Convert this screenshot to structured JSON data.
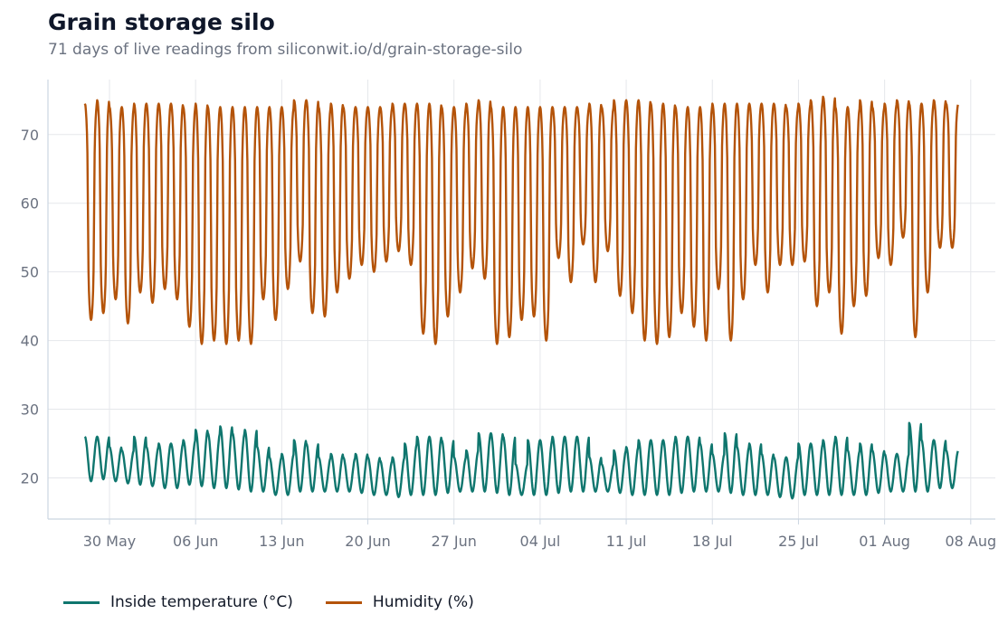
{
  "title": "Grain storage silo",
  "subtitle": "71 days of live readings from siliconwit.io/d/grain-storage-silo",
  "chart_data": {
    "type": "line",
    "title": "Grain storage silo",
    "subtitle": "71 days of live readings from siliconwit.io/d/grain-storage-silo",
    "xlabel": "",
    "ylabel": "",
    "x_start": "2025-05-28",
    "x_end": "2025-08-07",
    "xlim": [
      "2025-05-25",
      "2025-08-10"
    ],
    "ylim": [
      14,
      78
    ],
    "y_ticks": [
      20,
      30,
      40,
      50,
      60,
      70
    ],
    "x_ticks": [
      {
        "date": "2025-05-30",
        "label": "30 May"
      },
      {
        "date": "2025-06-06",
        "label": "06 Jun"
      },
      {
        "date": "2025-06-13",
        "label": "13 Jun"
      },
      {
        "date": "2025-06-20",
        "label": "20 Jun"
      },
      {
        "date": "2025-06-27",
        "label": "27 Jun"
      },
      {
        "date": "2025-07-04",
        "label": "04 Jul"
      },
      {
        "date": "2025-07-11",
        "label": "11 Jul"
      },
      {
        "date": "2025-07-18",
        "label": "18 Jul"
      },
      {
        "date": "2025-07-25",
        "label": "25 Jul"
      },
      {
        "date": "2025-08-01",
        "label": "01 Aug"
      },
      {
        "date": "2025-08-08",
        "label": "08 Aug"
      }
    ],
    "grid": true,
    "legend_position": "bottom-left",
    "series": [
      {
        "name": "Inside temperature (°C)",
        "color": "#0f766e",
        "daily_min": [
          19.5,
          19.8,
          19.5,
          19.2,
          19.0,
          18.8,
          18.5,
          18.5,
          19.0,
          18.8,
          18.5,
          18.5,
          18.3,
          18.0,
          18.0,
          17.5,
          17.5,
          18.0,
          18.0,
          18.0,
          18.0,
          18.0,
          17.8,
          17.5,
          17.5,
          17.2,
          17.5,
          17.5,
          17.5,
          17.8,
          18.0,
          18.0,
          18.0,
          17.8,
          17.5,
          17.5,
          17.5,
          17.5,
          17.8,
          18.0,
          18.0,
          18.0,
          18.0,
          17.8,
          17.5,
          17.5,
          17.5,
          17.5,
          17.8,
          18.0,
          18.0,
          18.0,
          17.8,
          17.5,
          17.5,
          17.5,
          17.2,
          17.0,
          17.5,
          17.5,
          17.5,
          17.5,
          17.5,
          17.5,
          17.8,
          18.0,
          18.0,
          18.0,
          18.0,
          18.5,
          18.5
        ],
        "daily_max": [
          26.0,
          26.0,
          24.5,
          24.0,
          26.0,
          24.5,
          25.0,
          25.0,
          25.5,
          27.0,
          26.5,
          27.5,
          26.5,
          27.0,
          24.5,
          23.0,
          23.5,
          25.5,
          25.0,
          23.0,
          23.5,
          23.0,
          23.5,
          23.0,
          22.5,
          23.0,
          25.0,
          26.0,
          26.0,
          25.5,
          23.0,
          24.0,
          26.5,
          26.5,
          26.0,
          22.0,
          25.5,
          25.5,
          26.0,
          26.0,
          26.0,
          23.0,
          22.0,
          24.0,
          24.5,
          25.5,
          25.5,
          25.5,
          26.0,
          26.0,
          25.0,
          23.5,
          26.5,
          24.5,
          25.0,
          23.5,
          23.0,
          23.0,
          25.0,
          25.0,
          25.5,
          26.0,
          24.0,
          25.0,
          24.0,
          23.5,
          23.5,
          28.0,
          25.5,
          25.5,
          24.0
        ]
      },
      {
        "name": "Humidity (%)",
        "color": "#b45309",
        "daily_min": [
          43.0,
          44.0,
          46.0,
          42.5,
          47.0,
          45.5,
          47.5,
          46.0,
          42.0,
          39.5,
          40.0,
          39.5,
          40.0,
          39.5,
          46.0,
          43.0,
          47.5,
          51.5,
          44.0,
          43.5,
          47.0,
          49.0,
          51.0,
          50.0,
          51.5,
          53.0,
          51.0,
          41.0,
          39.5,
          43.5,
          47.0,
          50.5,
          49.0,
          39.5,
          40.5,
          43.0,
          43.5,
          40.0,
          52.0,
          48.5,
          54.0,
          48.5,
          53.0,
          46.5,
          44.0,
          40.0,
          39.5,
          40.5,
          44.0,
          42.0,
          40.0,
          47.5,
          40.0,
          46.0,
          51.0,
          47.0,
          51.0,
          51.0,
          51.5,
          45.0,
          47.0,
          41.0,
          45.0,
          46.5,
          52.0,
          51.0,
          55.0,
          40.5,
          47.0,
          53.5,
          53.5
        ],
        "daily_max": [
          74.5,
          75.0,
          74.0,
          74.0,
          74.5,
          74.5,
          74.5,
          74.5,
          74.0,
          74.5,
          74.0,
          74.0,
          74.0,
          74.0,
          74.0,
          74.0,
          74.0,
          75.0,
          75.0,
          74.0,
          74.5,
          74.0,
          74.0,
          74.0,
          74.0,
          74.5,
          74.5,
          74.5,
          74.5,
          74.0,
          74.0,
          74.5,
          75.0,
          74.0,
          74.0,
          74.0,
          74.0,
          74.0,
          74.0,
          74.0,
          74.0,
          74.5,
          74.0,
          75.0,
          75.0,
          75.0,
          74.5,
          74.5,
          74.0,
          74.0,
          74.0,
          74.5,
          74.5,
          74.5,
          74.5,
          74.5,
          74.5,
          74.0,
          74.5,
          75.0,
          75.5,
          74.0,
          74.0,
          75.0,
          74.0,
          74.5,
          75.0,
          74.5,
          74.5,
          75.0,
          74.5
        ]
      }
    ]
  },
  "legend": {
    "items": [
      {
        "label": "Inside temperature (°C)",
        "color": "#0f766e"
      },
      {
        "label": "Humidity (%)",
        "color": "#b45309"
      }
    ]
  },
  "colors": {
    "axis": "#cbd5e1",
    "grid": "#e5e7eb",
    "tick_text": "#6b7280",
    "title": "#0f172a"
  }
}
